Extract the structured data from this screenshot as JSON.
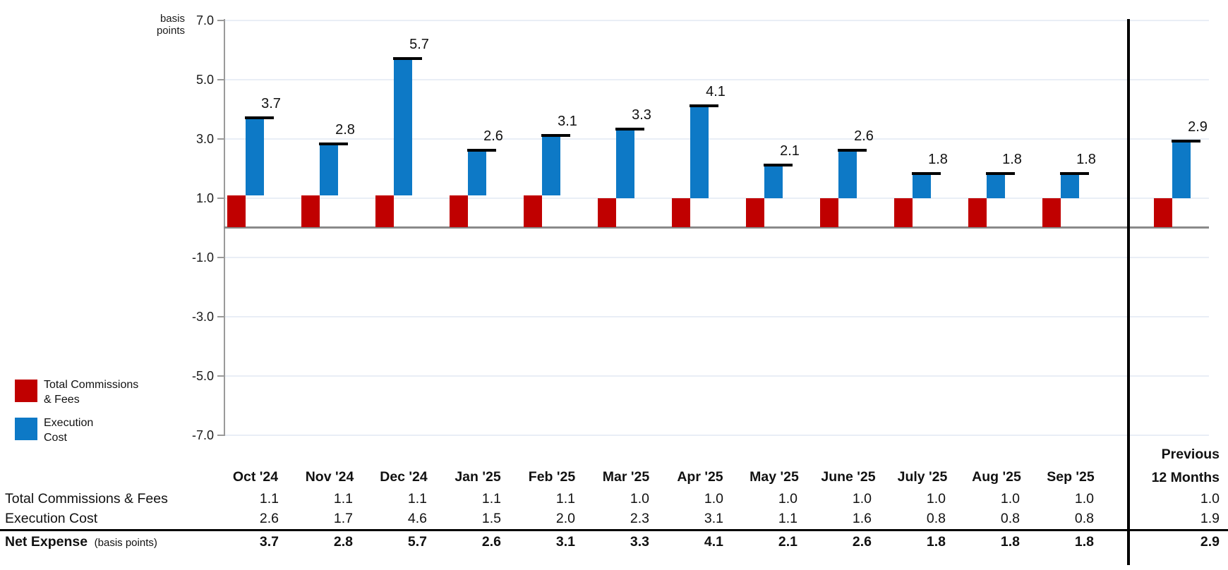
{
  "chart_data": {
    "type": "bar",
    "subtype": "paired-waterfall-columns",
    "unit_label": [
      "basis",
      "points"
    ],
    "ylim": [
      -7.0,
      7.0
    ],
    "yticks": [
      "7.0",
      "5.0",
      "3.0",
      "1.0",
      "-1.0",
      "-3.0",
      "-5.0",
      "-7.0"
    ],
    "ytick_values": [
      7,
      5,
      3,
      1,
      -1,
      -3,
      -5,
      -7
    ],
    "grid": true,
    "legend_position": "bottom-left",
    "categories": [
      "Oct '24",
      "Nov '24",
      "Dec '24",
      "Jan '25",
      "Feb '25",
      "Mar '25",
      "Apr '25",
      "May '25",
      "June '25",
      "July '25",
      "Aug '25",
      "Sep '25",
      "Previous 12 Months"
    ],
    "series": [
      {
        "name": "Total Commissions & Fees",
        "color": "#c00000",
        "values": [
          1.1,
          1.1,
          1.1,
          1.1,
          1.1,
          1.0,
          1.0,
          1.0,
          1.0,
          1.0,
          1.0,
          1.0,
          1.0
        ]
      },
      {
        "name": "Execution Cost",
        "color": "#0d79c6",
        "values": [
          2.6,
          1.7,
          4.6,
          1.5,
          2.0,
          2.3,
          3.1,
          1.1,
          1.6,
          0.8,
          0.8,
          0.8,
          1.9
        ]
      }
    ],
    "totals": [
      3.7,
      2.8,
      5.7,
      2.6,
      3.1,
      3.3,
      4.1,
      2.1,
      2.6,
      1.8,
      1.8,
      1.8,
      2.9
    ],
    "total_labels": [
      "3.7",
      "2.8",
      "5.7",
      "2.6",
      "3.1",
      "3.3",
      "4.1",
      "2.1",
      "2.6",
      "1.8",
      "1.8",
      "1.8",
      "2.9"
    ]
  },
  "legend": {
    "items": [
      {
        "color": "#c00000",
        "line1": "Total Commissions",
        "line2": "& Fees"
      },
      {
        "color": "#0d79c6",
        "line1": "Execution",
        "line2": "Cost"
      }
    ]
  },
  "table": {
    "month_headers": [
      "Oct '24",
      "Nov '24",
      "Dec '24",
      "Jan '25",
      "Feb '25",
      "Mar '25",
      "Apr '25",
      "May '25",
      "June '25",
      "July '25",
      "Aug '25",
      "Sep '25"
    ],
    "last_header_line1": "Previous",
    "last_header_line2": "12 Months",
    "rows": [
      {
        "label": "Total Commissions & Fees",
        "suffix": "",
        "bold": false,
        "values": [
          "1.1",
          "1.1",
          "1.1",
          "1.1",
          "1.1",
          "1.0",
          "1.0",
          "1.0",
          "1.0",
          "1.0",
          "1.0",
          "1.0"
        ],
        "last": "1.0"
      },
      {
        "label": "Execution Cost",
        "suffix": "",
        "bold": false,
        "values": [
          "2.6",
          "1.7",
          "4.6",
          "1.5",
          "2.0",
          "2.3",
          "3.1",
          "1.1",
          "1.6",
          "0.8",
          "0.8",
          "0.8"
        ],
        "last": "1.9"
      },
      {
        "label": "Net Expense",
        "suffix": "(basis points)",
        "bold": true,
        "values": [
          "3.7",
          "2.8",
          "5.7",
          "2.6",
          "3.1",
          "3.3",
          "4.1",
          "2.1",
          "2.6",
          "1.8",
          "1.8",
          "1.8"
        ],
        "last": "2.9"
      }
    ]
  },
  "colors": {
    "commissions": "#c00000",
    "execution": "#0d79c6",
    "gridline": "#e9eef6",
    "axis": "#9a9a9a",
    "zero_line": "#8a8a8a",
    "separator": "#000000",
    "cap": "#000000",
    "text": "#111111"
  }
}
